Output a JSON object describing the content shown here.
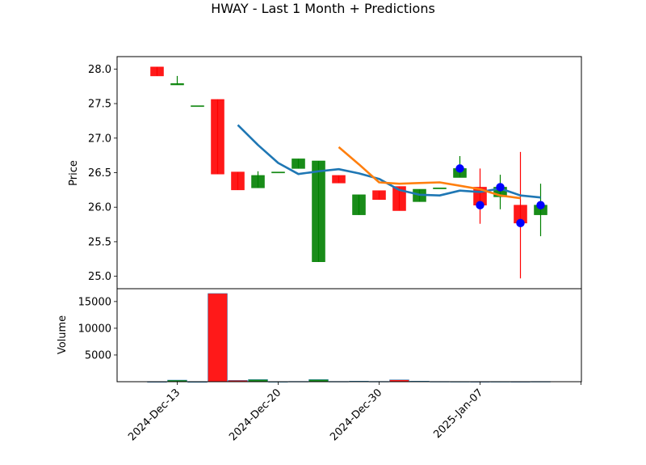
{
  "chart_data": {
    "title": "HWAY - Last 1 Month + Predictions",
    "type": "candlestick",
    "dates": [
      "2024-Dec-12",
      "2024-Dec-13",
      "2024-Dec-16",
      "2024-Dec-17",
      "2024-Dec-18",
      "2024-Dec-19",
      "2024-Dec-20",
      "2024-Dec-23",
      "2024-Dec-24",
      "2024-Dec-26",
      "2024-Dec-27",
      "2024-Dec-30",
      "2024-Dec-31",
      "2025-Jan-02",
      "2025-Jan-03",
      "2025-Jan-06",
      "2025-Jan-07",
      "2025-Jan-08",
      "2025-Jan-09",
      "2025-Jan-10",
      "2025-Jan-13"
    ],
    "open": [
      28.03,
      27.77,
      27.47,
      27.56,
      26.51,
      26.28,
      26.51,
      26.56,
      25.21,
      26.46,
      25.89,
      26.24,
      26.3,
      26.08,
      26.28,
      26.43,
      26.29,
      26.15,
      26.03,
      25.89,
      null
    ],
    "close": [
      27.9,
      27.79,
      27.47,
      26.48,
      26.25,
      26.46,
      26.51,
      26.7,
      26.67,
      26.35,
      26.18,
      26.11,
      25.95,
      26.26,
      26.28,
      26.56,
      26.03,
      26.29,
      25.77,
      26.03,
      null
    ],
    "high": [
      28.03,
      27.9,
      27.47,
      27.56,
      26.51,
      26.52,
      26.51,
      26.7,
      26.67,
      26.46,
      26.18,
      26.24,
      26.3,
      26.26,
      26.28,
      26.74,
      26.56,
      26.47,
      26.8,
      26.34,
      null
    ],
    "low": [
      27.9,
      27.77,
      27.47,
      26.48,
      26.25,
      26.28,
      26.51,
      26.56,
      25.21,
      26.35,
      25.89,
      26.11,
      25.95,
      26.08,
      26.28,
      26.43,
      25.76,
      25.97,
      24.97,
      25.58,
      null
    ],
    "volume": [
      20,
      300,
      0,
      16500,
      250,
      400,
      30,
      60,
      400,
      60,
      100,
      60,
      350,
      100,
      50,
      40,
      30,
      40,
      30,
      50,
      0
    ],
    "ma_blue": [
      null,
      null,
      null,
      null,
      27.19,
      26.9,
      26.64,
      26.48,
      26.52,
      26.55,
      26.49,
      26.41,
      26.25,
      26.18,
      26.17,
      26.24,
      26.22,
      26.27,
      26.17,
      26.14,
      null
    ],
    "ma_orange": [
      null,
      null,
      null,
      null,
      null,
      null,
      null,
      null,
      null,
      26.87,
      26.62,
      26.36,
      26.34,
      26.35,
      26.36,
      26.31,
      26.26,
      26.17,
      26.13,
      null,
      null
    ],
    "pred_points": [
      {
        "index": 15,
        "value": 26.56
      },
      {
        "index": 16,
        "value": 26.03
      },
      {
        "index": 17,
        "value": 26.29
      },
      {
        "index": 18,
        "value": 25.77
      },
      {
        "index": 19,
        "value": 26.03
      }
    ],
    "price_axis": {
      "label": "Price",
      "ylim": [
        24.82,
        28.18
      ],
      "ticks": [
        "25.0",
        "25.5",
        "26.0",
        "26.5",
        "27.0",
        "27.5",
        "28.0"
      ],
      "tick_values": [
        25.0,
        25.5,
        26.0,
        26.5,
        27.0,
        27.5,
        28.0
      ]
    },
    "volume_axis": {
      "label": "Volume",
      "ylim": [
        0,
        17400
      ],
      "ticks": [
        "5000",
        "10000",
        "15000"
      ],
      "tick_values": [
        5000,
        10000,
        15000
      ]
    },
    "x_ticks": [
      {
        "label": "2024-Dec-13",
        "index": 1
      },
      {
        "label": "2024-Dec-20",
        "index": 6
      },
      {
        "label": "2024-Dec-30",
        "index": 11
      },
      {
        "label": "2025-Jan-07",
        "index": 16
      },
      {
        "label": "",
        "index": 21
      }
    ],
    "colors": {
      "up": "#008000",
      "down": "#ff0000",
      "ma_blue": "#1f77b4",
      "ma_orange": "#ff7f0e",
      "prediction": "#0000ff"
    }
  }
}
